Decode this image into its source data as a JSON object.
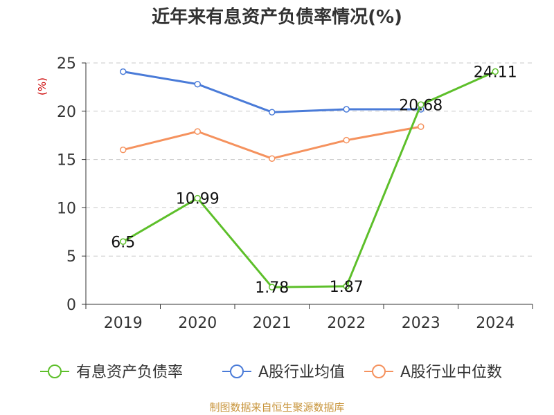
{
  "chart_data": {
    "type": "line",
    "title": "近年来有息资产负债率情况(%)",
    "ylabel": "(%)",
    "xlabel": "",
    "categories": [
      "2019",
      "2020",
      "2021",
      "2022",
      "2023",
      "2024"
    ],
    "ylim": [
      0,
      25
    ],
    "yticks": [
      0,
      5,
      10,
      15,
      20,
      25
    ],
    "grid": "horizontal-dashed",
    "legend_position": "bottom",
    "series": [
      {
        "name": "有息资产负债率",
        "color": "#5dbf2a",
        "values": [
          6.5,
          10.99,
          1.78,
          1.87,
          20.68,
          24.11
        ],
        "labels": [
          "6.5",
          "10.99",
          "1.78",
          "1.87",
          "20.68",
          "24.11"
        ]
      },
      {
        "name": "A股行业均值",
        "color": "#4a7bd8",
        "values": [
          24.1,
          22.8,
          19.9,
          20.2,
          20.2,
          null
        ]
      },
      {
        "name": "A股行业中位数",
        "color": "#f5925e",
        "values": [
          16.0,
          17.9,
          15.1,
          17.0,
          18.4,
          null
        ]
      }
    ]
  },
  "footer": {
    "source": "制图数据来自恒生聚源数据库"
  }
}
